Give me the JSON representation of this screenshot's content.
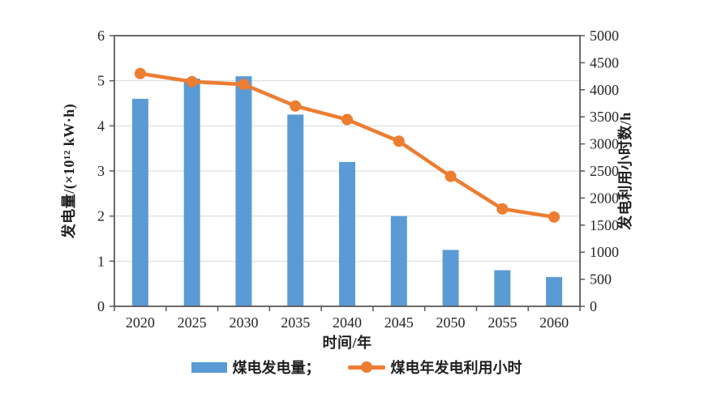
{
  "chart_data": {
    "type": "bar",
    "subtype": "bar-line-combo",
    "title": "",
    "categories": [
      "2020",
      "2025",
      "2030",
      "2035",
      "2040",
      "2045",
      "2050",
      "2055",
      "2060"
    ],
    "series": [
      {
        "name": "煤电发电量",
        "type": "bar",
        "axis": "left",
        "values": [
          4.6,
          5.05,
          5.1,
          4.25,
          3.2,
          2.0,
          1.25,
          0.8,
          0.65
        ]
      },
      {
        "name": "煤电年发电利用小时",
        "type": "line",
        "axis": "right",
        "values": [
          4300,
          4150,
          4100,
          3700,
          3450,
          3050,
          2400,
          1800,
          1650
        ]
      }
    ],
    "x_axis": {
      "label": "时间/年"
    },
    "left_axis": {
      "label": "发电量/(×10¹² kW·h)",
      "min": 0,
      "max": 6,
      "step": 1,
      "tick_labels": [
        "0",
        "1",
        "2",
        "3",
        "4",
        "5",
        "6"
      ]
    },
    "right_axis": {
      "label": "发电利用小时数/h",
      "min": 0,
      "max": 5000,
      "step": 500,
      "tick_labels": [
        "0",
        "500",
        "1000",
        "1500",
        "2000",
        "2500",
        "3000",
        "3500",
        "4000",
        "4500",
        "5000"
      ]
    },
    "legend": {
      "position": "bottom",
      "entries": [
        {
          "label": "煤电发电量；",
          "swatch": "bar"
        },
        {
          "label": "煤电年发电利用小时",
          "swatch": "line-marker"
        }
      ]
    },
    "grid": "horizontal"
  },
  "colors": {
    "bar": "#5B9BD5",
    "line": "#ED7D31",
    "axis": "#595959",
    "grid": "#D9D9D9",
    "text": "#262626",
    "background": "#FFFFFF"
  }
}
